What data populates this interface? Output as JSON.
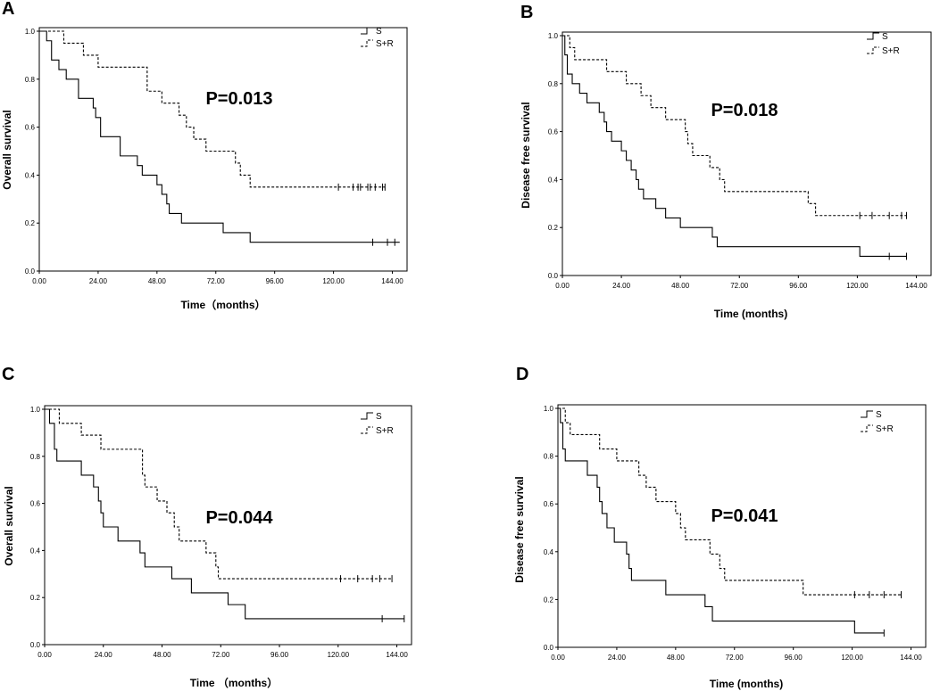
{
  "chart_data": [
    {
      "type": "line",
      "panel_label": "A",
      "title": "",
      "xlabel": "Time（months）",
      "ylabel": "Overall survival",
      "xlim": [
        0,
        150
      ],
      "ylim": [
        0,
        1.0
      ],
      "x_ticks": [
        "0.00",
        "24.00",
        "48.00",
        "72.00",
        "96.00",
        "120.00",
        "144.00"
      ],
      "y_ticks": [
        "0.0",
        "0.2",
        "0.4",
        "0.6",
        "0.8",
        "1.0"
      ],
      "p_value": "P=0.013",
      "legend": "top-right",
      "series": [
        {
          "name": "S",
          "style": "solid",
          "steps": [
            [
              0,
              1.0
            ],
            [
              3,
              0.96
            ],
            [
              5,
              0.88
            ],
            [
              8,
              0.84
            ],
            [
              11,
              0.8
            ],
            [
              16,
              0.72
            ],
            [
              22,
              0.68
            ],
            [
              23,
              0.64
            ],
            [
              25,
              0.56
            ],
            [
              33,
              0.48
            ],
            [
              40,
              0.44
            ],
            [
              42,
              0.4
            ],
            [
              48,
              0.36
            ],
            [
              50,
              0.32
            ],
            [
              52,
              0.28
            ],
            [
              53,
              0.24
            ],
            [
              58,
              0.2
            ],
            [
              75,
              0.16
            ],
            [
              86,
              0.12
            ]
          ],
          "end": 147,
          "censored": [
            136,
            142,
            145
          ]
        },
        {
          "name": "S+R",
          "style": "dashed",
          "steps": [
            [
              0,
              1.0
            ],
            [
              10,
              0.95
            ],
            [
              18,
              0.9
            ],
            [
              24,
              0.85
            ],
            [
              44,
              0.75
            ],
            [
              50,
              0.7
            ],
            [
              57,
              0.65
            ],
            [
              60,
              0.6
            ],
            [
              63,
              0.55
            ],
            [
              68,
              0.5
            ],
            [
              80,
              0.45
            ],
            [
              82,
              0.4
            ],
            [
              86,
              0.35
            ]
          ],
          "end": 141,
          "censored": [
            122,
            128,
            130,
            131,
            134,
            135,
            137,
            140,
            141
          ]
        }
      ]
    },
    {
      "type": "line",
      "panel_label": "B",
      "title": "",
      "xlabel": "Time (months)",
      "ylabel": "Disease free survival",
      "xlim": [
        0,
        150
      ],
      "ylim": [
        0,
        1.0
      ],
      "x_ticks": [
        "0.00",
        "24.00",
        "48.00",
        "72.00",
        "96.00",
        "120.00",
        "144.00"
      ],
      "y_ticks": [
        "0.0",
        "0.2",
        "0.4",
        "0.6",
        "0.8",
        "1.0"
      ],
      "p_value": "P=0.018",
      "legend": "top-right",
      "series": [
        {
          "name": "S",
          "style": "solid",
          "steps": [
            [
              0,
              1.0
            ],
            [
              1,
              0.92
            ],
            [
              2,
              0.84
            ],
            [
              4,
              0.8
            ],
            [
              7,
              0.76
            ],
            [
              10,
              0.72
            ],
            [
              15,
              0.68
            ],
            [
              17,
              0.64
            ],
            [
              18,
              0.6
            ],
            [
              20,
              0.56
            ],
            [
              24,
              0.52
            ],
            [
              26,
              0.48
            ],
            [
              28,
              0.44
            ],
            [
              30,
              0.4
            ],
            [
              31,
              0.36
            ],
            [
              33,
              0.32
            ],
            [
              38,
              0.28
            ],
            [
              42,
              0.24
            ],
            [
              48,
              0.2
            ],
            [
              61,
              0.16
            ],
            [
              63,
              0.12
            ],
            [
              121,
              0.08
            ]
          ],
          "end": 140,
          "censored": [
            133,
            140
          ]
        },
        {
          "name": "S+R",
          "style": "dashed",
          "steps": [
            [
              0,
              1.0
            ],
            [
              3,
              0.95
            ],
            [
              5,
              0.9
            ],
            [
              18,
              0.85
            ],
            [
              26,
              0.8
            ],
            [
              32,
              0.75
            ],
            [
              36,
              0.7
            ],
            [
              42,
              0.65
            ],
            [
              50,
              0.6
            ],
            [
              51,
              0.55
            ],
            [
              53,
              0.5
            ],
            [
              60,
              0.45
            ],
            [
              64,
              0.4
            ],
            [
              66,
              0.35
            ],
            [
              100,
              0.3
            ],
            [
              103,
              0.25
            ]
          ],
          "end": 140,
          "censored": [
            121,
            126,
            133,
            138,
            140
          ]
        }
      ]
    },
    {
      "type": "line",
      "panel_label": "C",
      "title": "",
      "xlabel": "Time （months）",
      "ylabel": "Overall survival",
      "xlim": [
        0,
        150
      ],
      "ylim": [
        0,
        1.0
      ],
      "x_ticks": [
        "0.00",
        "24.00",
        "48.00",
        "72.00",
        "96.00",
        "120.00",
        "144.00"
      ],
      "y_ticks": [
        "0.0",
        "0.2",
        "0.4",
        "0.6",
        "0.8",
        "1.0"
      ],
      "p_value": "P=0.044",
      "legend": "top-right",
      "series": [
        {
          "name": "S",
          "style": "solid",
          "steps": [
            [
              0,
              1.0
            ],
            [
              2,
              0.94
            ],
            [
              4,
              0.83
            ],
            [
              5,
              0.78
            ],
            [
              15,
              0.72
            ],
            [
              20,
              0.67
            ],
            [
              22,
              0.61
            ],
            [
              23,
              0.56
            ],
            [
              24,
              0.5
            ],
            [
              30,
              0.44
            ],
            [
              39,
              0.39
            ],
            [
              41,
              0.33
            ],
            [
              52,
              0.28
            ],
            [
              60,
              0.22
            ],
            [
              75,
              0.17
            ],
            [
              82,
              0.11
            ]
          ],
          "end": 147,
          "censored": [
            138,
            147
          ]
        },
        {
          "name": "S+R",
          "style": "dashed",
          "steps": [
            [
              0,
              1.0
            ],
            [
              6,
              0.94
            ],
            [
              15,
              0.89
            ],
            [
              23,
              0.83
            ],
            [
              40,
              0.72
            ],
            [
              41,
              0.67
            ],
            [
              46,
              0.61
            ],
            [
              50,
              0.56
            ],
            [
              53,
              0.5
            ],
            [
              55,
              0.44
            ],
            [
              66,
              0.39
            ],
            [
              70,
              0.33
            ],
            [
              71,
              0.28
            ]
          ],
          "end": 142,
          "censored": [
            121,
            128,
            134,
            137,
            142
          ]
        }
      ]
    },
    {
      "type": "line",
      "panel_label": "D",
      "title": "",
      "xlabel": "Time  (months)",
      "ylabel": "Disease free survival",
      "xlim": [
        0,
        150
      ],
      "ylim": [
        0,
        1.0
      ],
      "x_ticks": [
        "0.00",
        "24.00",
        "48.00",
        "72.00",
        "96.00",
        "120.00",
        "144.00"
      ],
      "y_ticks": [
        "0.0",
        "0.2",
        "0.4",
        "0.6",
        "0.8",
        "1.0"
      ],
      "p_value": "P=0.041",
      "legend": "top-right",
      "series": [
        {
          "name": "S",
          "style": "solid",
          "steps": [
            [
              0,
              1.0
            ],
            [
              1,
              0.94
            ],
            [
              2,
              0.83
            ],
            [
              3,
              0.78
            ],
            [
              12,
              0.72
            ],
            [
              16,
              0.67
            ],
            [
              17,
              0.61
            ],
            [
              18,
              0.56
            ],
            [
              20,
              0.5
            ],
            [
              23,
              0.44
            ],
            [
              28,
              0.39
            ],
            [
              29,
              0.33
            ],
            [
              30,
              0.28
            ],
            [
              44,
              0.22
            ],
            [
              60,
              0.17
            ],
            [
              63,
              0.11
            ],
            [
              121,
              0.06
            ]
          ],
          "end": 133,
          "censored": [
            133
          ]
        },
        {
          "name": "S+R",
          "style": "dashed",
          "steps": [
            [
              0,
              1.0
            ],
            [
              3,
              0.94
            ],
            [
              5,
              0.89
            ],
            [
              17,
              0.83
            ],
            [
              24,
              0.78
            ],
            [
              33,
              0.72
            ],
            [
              36,
              0.67
            ],
            [
              40,
              0.61
            ],
            [
              48,
              0.56
            ],
            [
              50,
              0.5
            ],
            [
              52,
              0.45
            ],
            [
              62,
              0.39
            ],
            [
              66,
              0.33
            ],
            [
              68,
              0.28
            ],
            [
              100,
              0.22
            ]
          ],
          "end": 140,
          "censored": [
            121,
            127,
            133,
            140
          ]
        }
      ]
    }
  ]
}
